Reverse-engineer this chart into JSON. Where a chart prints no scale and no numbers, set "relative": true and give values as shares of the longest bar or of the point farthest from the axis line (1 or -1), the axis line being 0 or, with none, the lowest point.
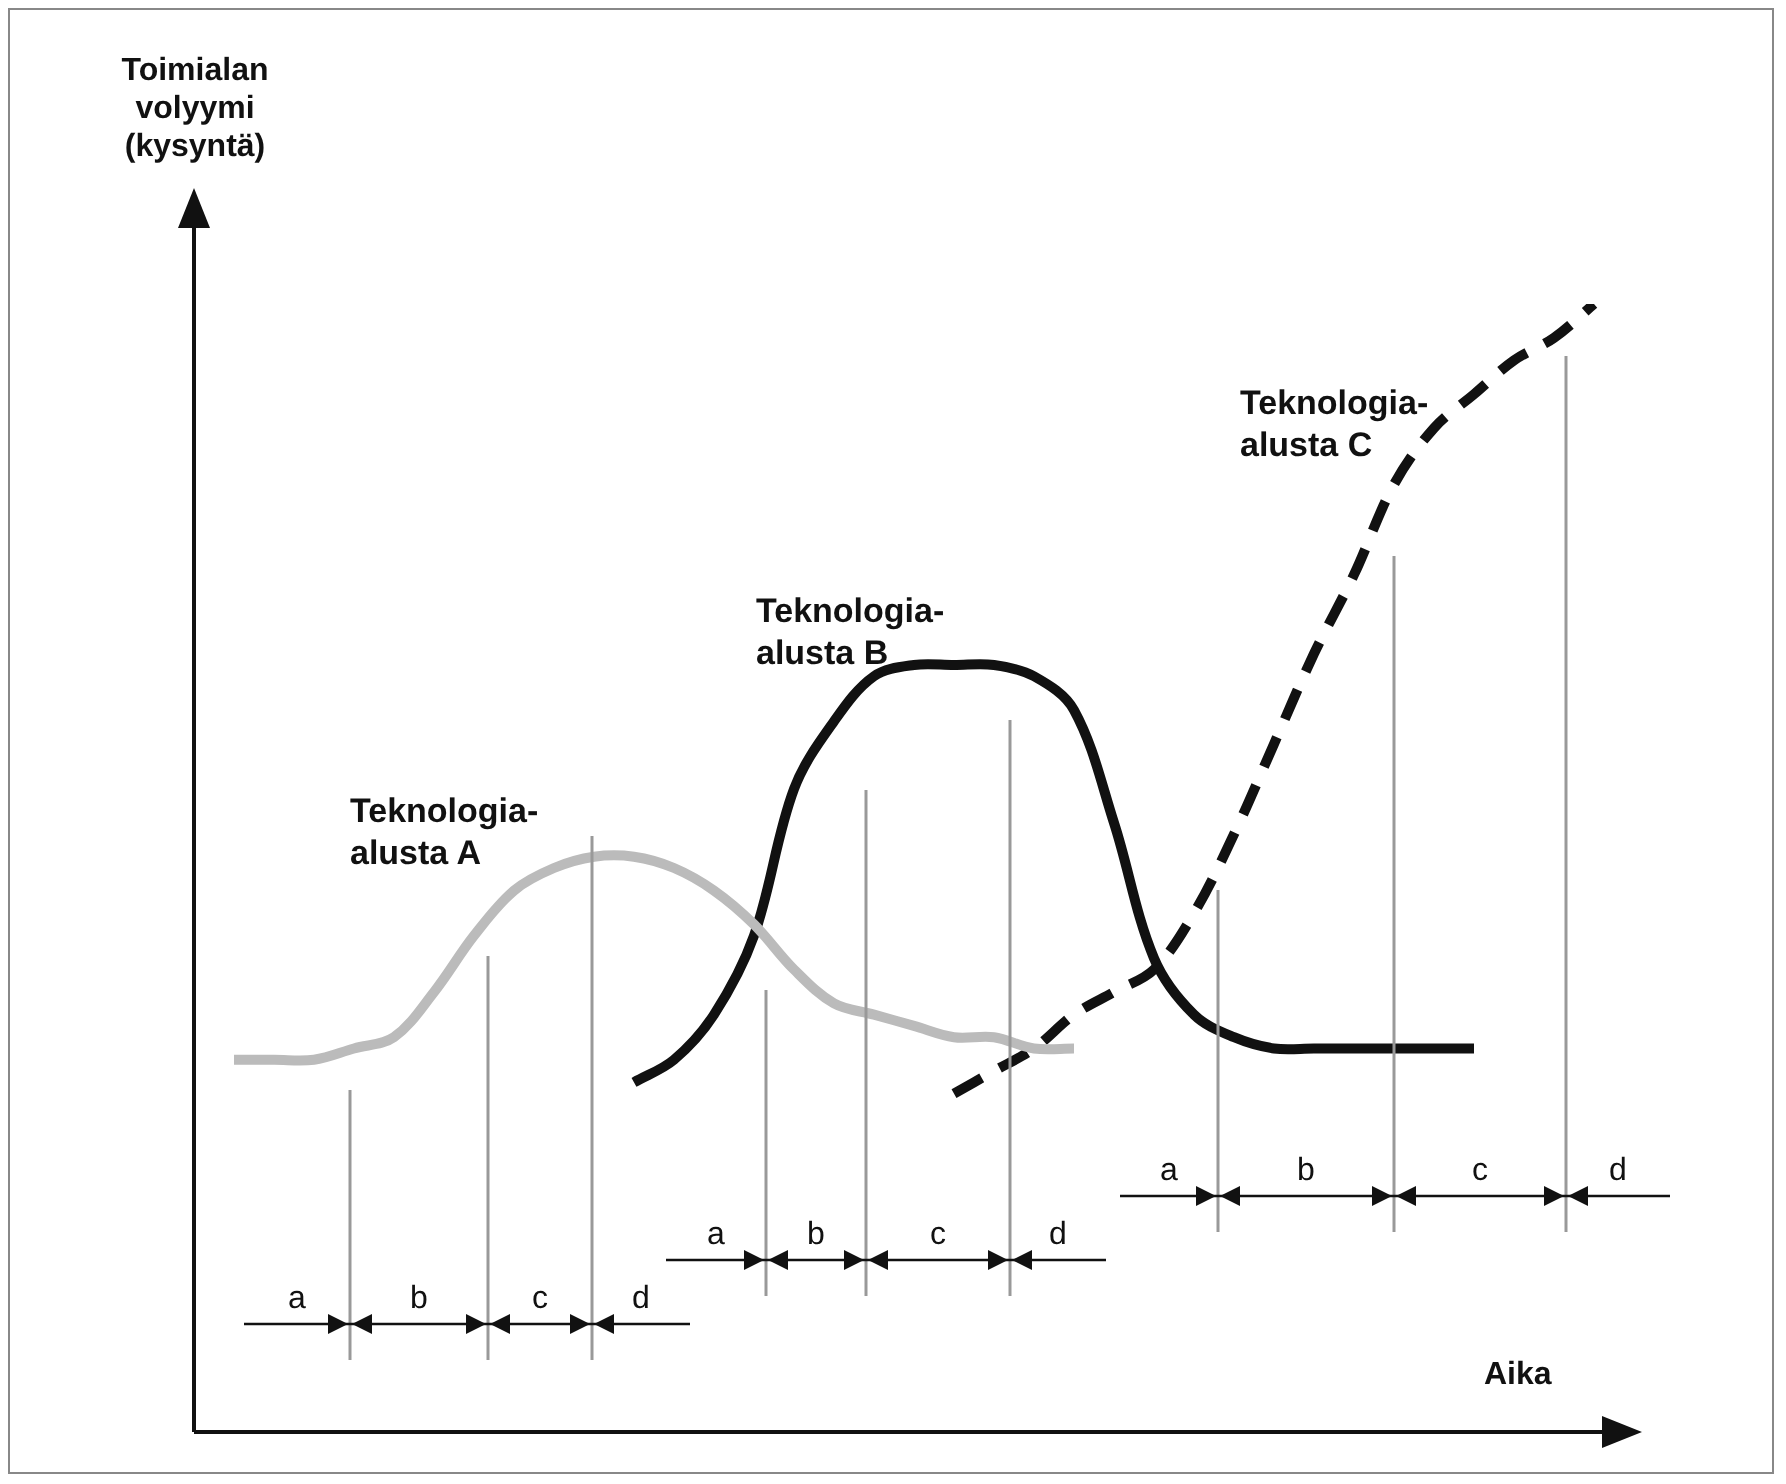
{
  "chart_data": {
    "type": "line",
    "relative": true,
    "xlabel": "Aika",
    "ylabel": "Toimialan volyymi (kysyntä)",
    "marker": "none",
    "categories": [
      null,
      null,
      null,
      null,
      null,
      null,
      null,
      null,
      null,
      null,
      null,
      null,
      null,
      null,
      null,
      null,
      null,
      null,
      null,
      null,
      null,
      null,
      null,
      null,
      null,
      null,
      null,
      null,
      null,
      null,
      null,
      null,
      null,
      null,
      null,
      null,
      null
    ],
    "series": [
      {
        "name": "Teknologia-alusta A",
        "color": "#bbbbbb",
        "line_style": "solid",
        "values": [
          null,
          0.33,
          0.33,
          0.33,
          0.34,
          0.35,
          0.39,
          0.44,
          0.48,
          0.5,
          0.51,
          0.51,
          0.5,
          0.48,
          0.45,
          0.41,
          0.38,
          0.37,
          0.36,
          0.35,
          0.35,
          0.34,
          0.34,
          null,
          null,
          null,
          null,
          null,
          null,
          null,
          null,
          null,
          null,
          null,
          null,
          null,
          null
        ]
      },
      {
        "name": "Teknologia-alusta B",
        "color": "#111111",
        "line_style": "solid",
        "values": [
          null,
          null,
          null,
          null,
          null,
          null,
          null,
          null,
          null,
          null,
          null,
          0.31,
          0.33,
          0.37,
          0.44,
          0.57,
          0.63,
          0.67,
          0.68,
          0.68,
          0.68,
          0.67,
          0.64,
          0.54,
          0.42,
          0.37,
          0.35,
          0.34,
          0.34,
          0.34,
          0.34,
          0.34,
          0.34,
          null,
          null,
          null,
          null
        ]
      },
      {
        "name": "Teknologia-alusta C",
        "color": "#111111",
        "line_style": "dashed",
        "values": [
          null,
          null,
          null,
          null,
          null,
          null,
          null,
          null,
          null,
          null,
          null,
          null,
          null,
          null,
          null,
          null,
          null,
          null,
          null,
          0.3,
          0.32,
          0.34,
          0.37,
          0.39,
          0.41,
          0.46,
          0.53,
          0.61,
          0.69,
          0.76,
          0.84,
          0.89,
          0.92,
          0.95,
          0.97,
          1,
          null
        ]
      }
    ],
    "annotations": [
      "a",
      "b",
      "c",
      "d",
      "a",
      "b",
      "c",
      "d",
      "a",
      "b",
      "c",
      "d"
    ]
  }
}
